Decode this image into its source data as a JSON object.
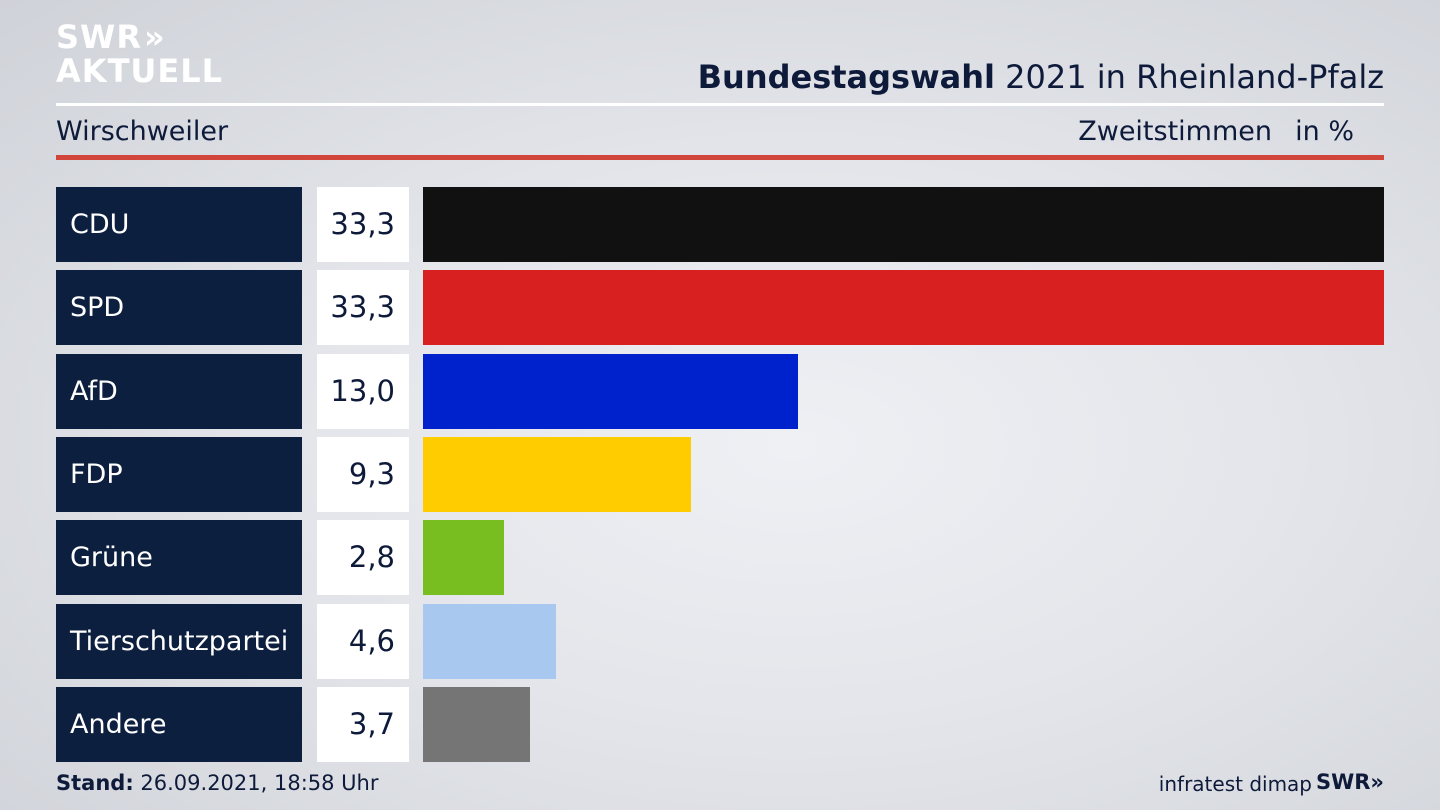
{
  "brand": {
    "line1": "SWR",
    "line1_chevrons": "»",
    "line2": "AKTUELL",
    "footer_logo": "SWR»"
  },
  "header": {
    "title_bold": "Bundestagswahl",
    "title_rest": " 2021 in Rheinland-Pfalz",
    "location": "Wirschweiler",
    "vote_type": "Zweitstimmen",
    "unit": "in %"
  },
  "footer": {
    "stand_label": "Stand:",
    "stand_value": " 26.09.2021, 18:58 Uhr",
    "source": "infratest dimap"
  },
  "colors": {
    "accent_red": "#d1453a",
    "label_bg": "#0d1f3f"
  },
  "chart_data": {
    "type": "bar",
    "orientation": "horizontal",
    "categories": [
      "CDU",
      "SPD",
      "AfD",
      "FDP",
      "Grüne",
      "Tierschutzpartei",
      "Andere"
    ],
    "values": [
      33.3,
      33.3,
      13.0,
      9.3,
      2.8,
      4.6,
      3.7
    ],
    "value_labels": [
      "33,3",
      "33,3",
      "13,0",
      "9,3",
      "2,8",
      "4,6",
      "3,7"
    ],
    "colors": [
      "#111111",
      "#d82020",
      "#0022cc",
      "#ffcc00",
      "#78be20",
      "#a9c8ef",
      "#757575"
    ],
    "xlim": [
      0,
      33.3
    ]
  }
}
